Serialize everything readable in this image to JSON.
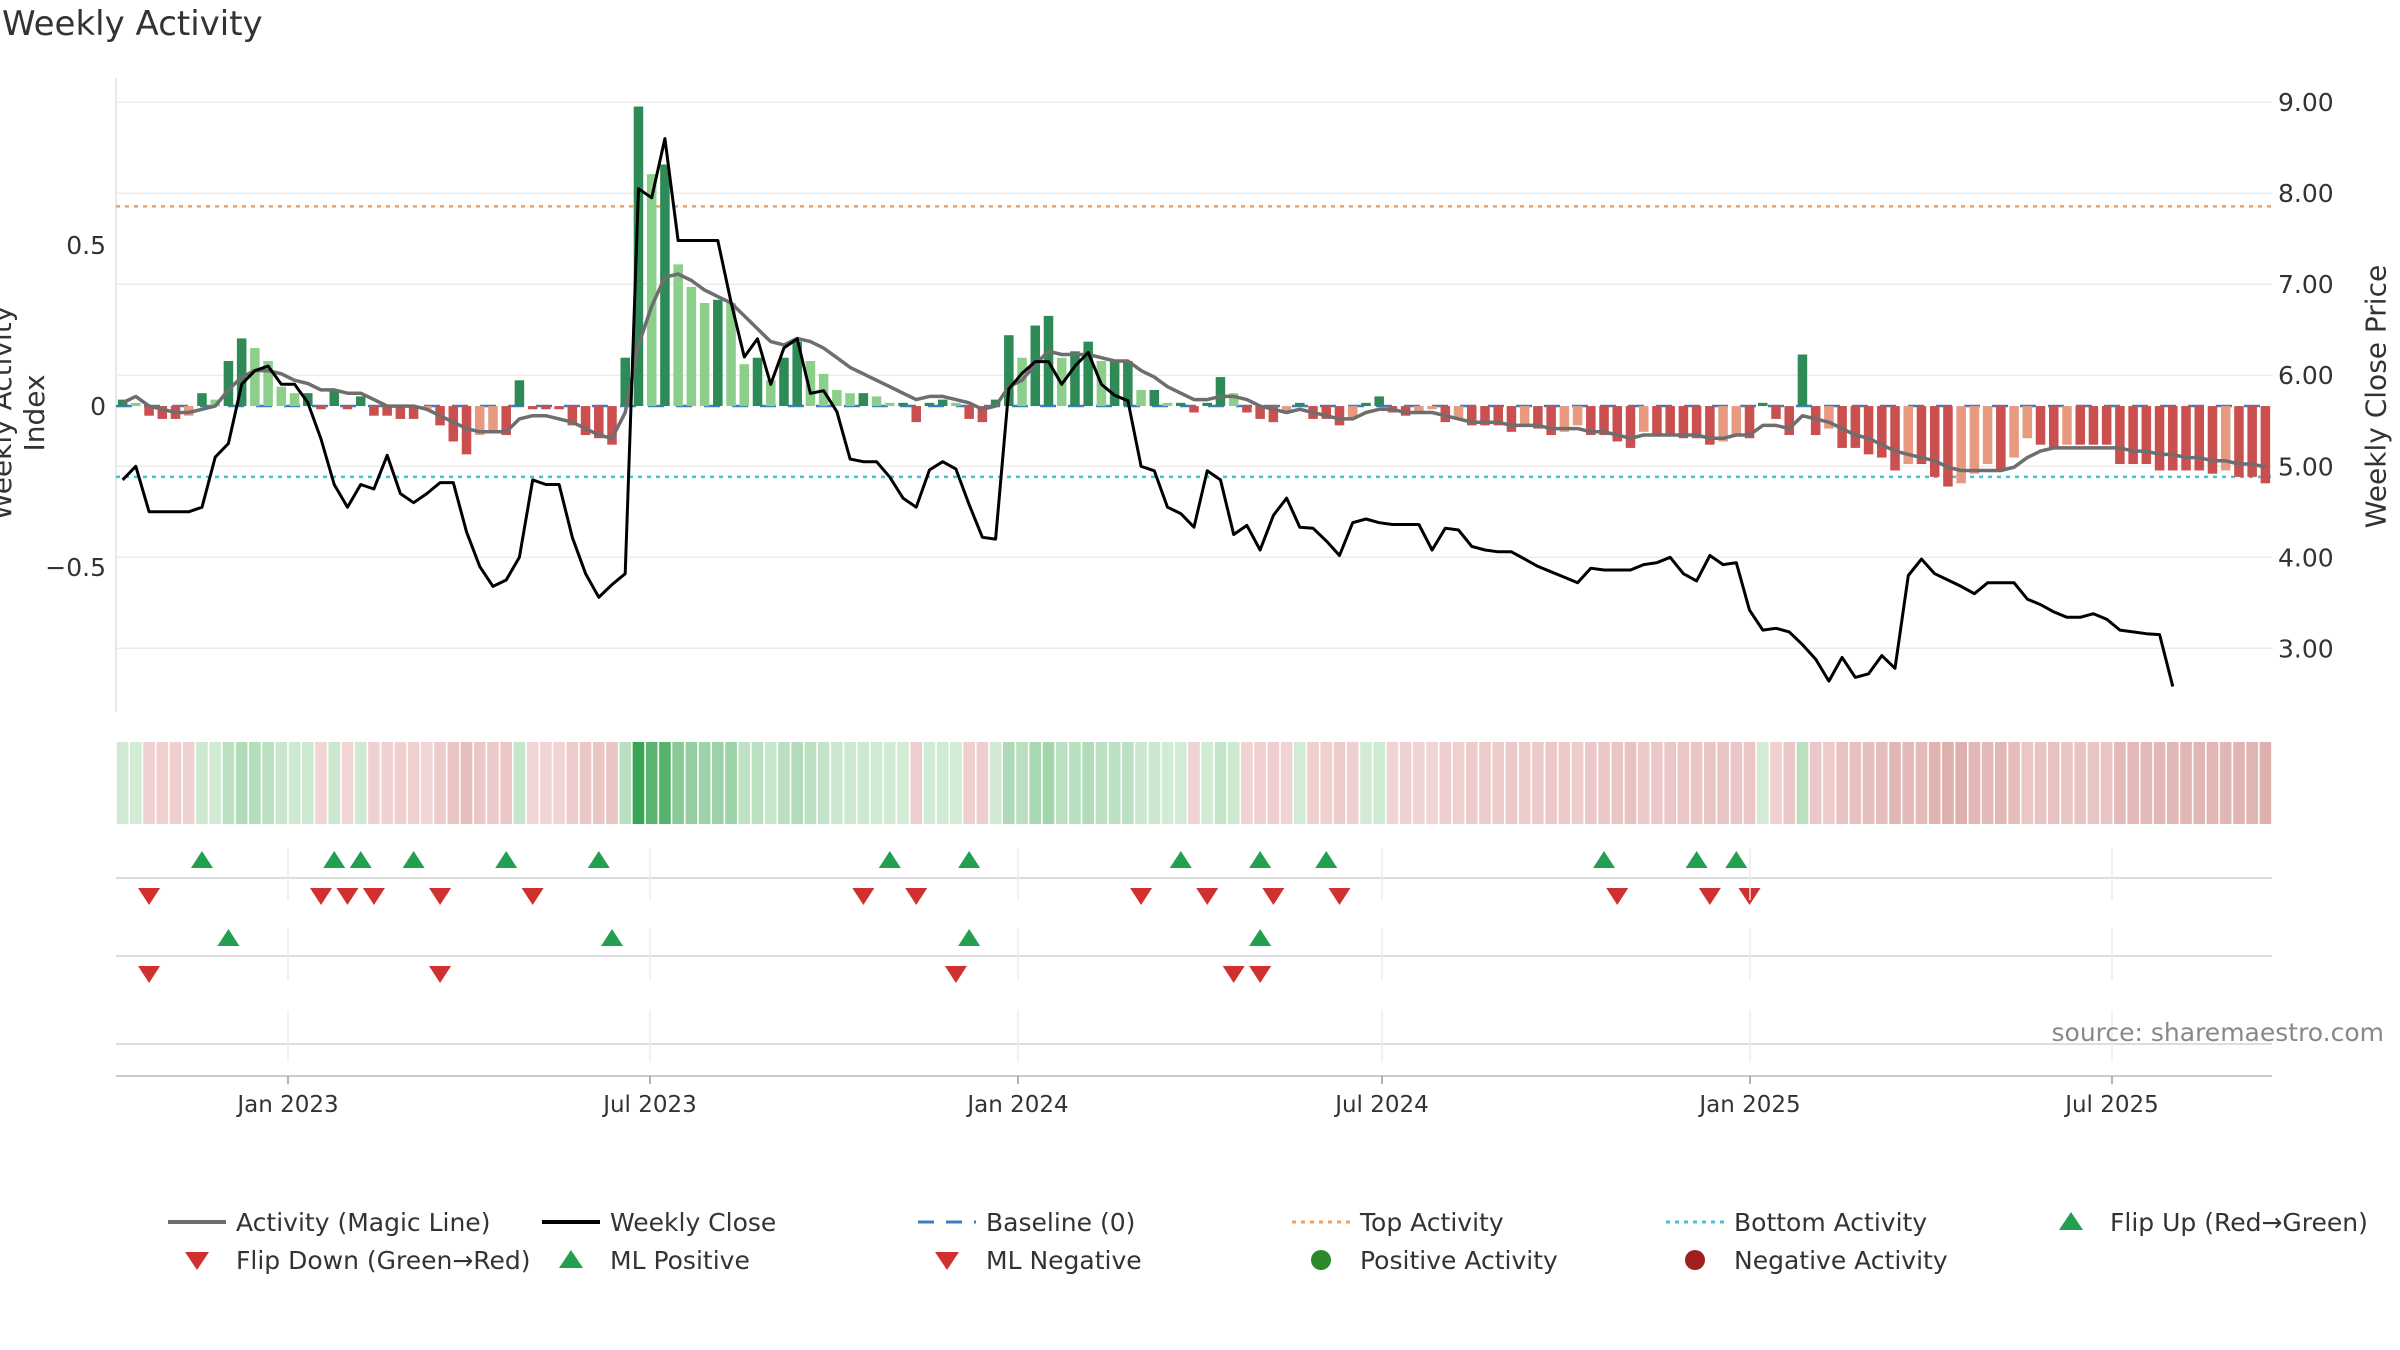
{
  "title": "Weekly Activity",
  "source": "source: sharemaestro.com",
  "colors": {
    "magic_line": "#6e6e6e",
    "close": "#000000",
    "baseline": "#3a7fc0",
    "top": "#f0a060",
    "bottom": "#36c8d8",
    "pos_strong": "#2e8b57",
    "pos_weak": "#8ccf8a",
    "neg_strong": "#c9504f",
    "neg_weak": "#e79a80",
    "flip_up": "#22a050",
    "flip_down": "#d03030",
    "positive_activity": "#2a8a2a",
    "negative_activity": "#a02020"
  },
  "legend": [
    {
      "key": "magic",
      "label": "Activity (Magic Line)"
    },
    {
      "key": "close",
      "label": "Weekly Close"
    },
    {
      "key": "baseline",
      "label": "Baseline (0)"
    },
    {
      "key": "top",
      "label": "Top Activity"
    },
    {
      "key": "bottom",
      "label": "Bottom Activity"
    },
    {
      "key": "flipup",
      "label": "Flip Up (Red→Green)"
    },
    {
      "key": "flipdown",
      "label": "Flip Down (Green→Red)"
    },
    {
      "key": "mlpos",
      "label": "ML Positive"
    },
    {
      "key": "mlneg",
      "label": "ML Negative"
    },
    {
      "key": "posact",
      "label": "Positive Activity"
    },
    {
      "key": "negact",
      "label": "Negative Activity"
    }
  ],
  "chart_data": {
    "type": "bar",
    "title": "Weekly Activity",
    "ylabel": "Weekly Activity Index",
    "ylabel_right": "Weekly Close Price",
    "ylim": [
      -0.95,
      1.0
    ],
    "ylim_right": [
      2.3,
      9.2
    ],
    "yticks_left": [
      {
        "v": 0.5,
        "label": "0.5"
      },
      {
        "v": 0,
        "label": "0"
      },
      {
        "v": -0.5,
        "label": "−0.5"
      }
    ],
    "yticks_right": [
      "3.00",
      "4.00",
      "5.00",
      "6.00",
      "7.00",
      "8.00",
      "9.00"
    ],
    "x_start": "2022-10-07",
    "x_end": "2025-09-19",
    "x_ticks": [
      {
        "date": "2023-01-01",
        "label": "Jan 2023"
      },
      {
        "date": "2023-07-01",
        "label": "Jul 2023"
      },
      {
        "date": "2024-01-01",
        "label": "Jan 2024"
      },
      {
        "date": "2024-07-01",
        "label": "Jul 2024"
      },
      {
        "date": "2025-01-01",
        "label": "Jan 2025"
      },
      {
        "date": "2025-07-01",
        "label": "Jul 2025"
      }
    ],
    "top_activity": 0.62,
    "bottom_activity": -0.22,
    "grid": true,
    "legend_position": "bottom",
    "activity": [
      0.02,
      0.01,
      -0.03,
      -0.04,
      -0.04,
      -0.03,
      0.04,
      0.02,
      0.14,
      0.21,
      0.18,
      0.14,
      0.06,
      0.04,
      0.04,
      -0.01,
      0.05,
      -0.01,
      0.03,
      -0.03,
      -0.03,
      -0.04,
      -0.04,
      -0.01,
      -0.06,
      -0.11,
      -0.15,
      -0.09,
      -0.08,
      -0.09,
      0.08,
      -0.01,
      -0.01,
      -0.01,
      -0.06,
      -0.09,
      -0.1,
      -0.12,
      0.15,
      0.93,
      0.72,
      0.75,
      0.44,
      0.37,
      0.32,
      0.33,
      0.32,
      0.13,
      0.15,
      0.08,
      0.15,
      0.2,
      0.14,
      0.1,
      0.05,
      0.04,
      0.04,
      0.03,
      0.01,
      0.01,
      -0.05,
      0.01,
      0.02,
      0.01,
      -0.04,
      -0.05,
      0.02,
      0.22,
      0.15,
      0.25,
      0.28,
      0.15,
      0.17,
      0.2,
      0.14,
      0.14,
      0.14,
      0.05,
      0.05,
      0.01,
      0.01,
      -0.02,
      0.01,
      0.09,
      0.04,
      -0.02,
      -0.04,
      -0.05,
      -0.02,
      0.01,
      -0.04,
      -0.04,
      -0.06,
      -0.04,
      0.01,
      0.03,
      -0.02,
      -0.03,
      -0.02,
      -0.01,
      -0.05,
      -0.04,
      -0.06,
      -0.06,
      -0.06,
      -0.08,
      -0.06,
      -0.07,
      -0.09,
      -0.08,
      -0.06,
      -0.09,
      -0.09,
      -0.11,
      -0.13,
      -0.08,
      -0.09,
      -0.09,
      -0.1,
      -0.1,
      -0.12,
      -0.11,
      -0.09,
      -0.1,
      0.01,
      -0.04,
      -0.09,
      0.16,
      -0.09,
      -0.07,
      -0.13,
      -0.13,
      -0.15,
      -0.16,
      -0.2,
      -0.18,
      -0.18,
      -0.22,
      -0.25,
      -0.24,
      -0.21,
      -0.18,
      -0.2,
      -0.16,
      -0.1,
      -0.12,
      -0.13,
      -0.12,
      -0.12,
      -0.12,
      -0.12,
      -0.18,
      -0.18,
      -0.18,
      -0.2,
      -0.2,
      -0.2,
      -0.2,
      -0.21,
      -0.2,
      -0.22,
      -0.22,
      -0.24
    ],
    "magic_line": [
      0.01,
      0.03,
      0.0,
      -0.01,
      -0.02,
      -0.02,
      -0.01,
      0.0,
      0.05,
      0.09,
      0.11,
      0.11,
      0.1,
      0.08,
      0.07,
      0.05,
      0.05,
      0.04,
      0.04,
      0.02,
      0.0,
      0.0,
      0.0,
      -0.01,
      -0.03,
      -0.05,
      -0.07,
      -0.08,
      -0.08,
      -0.08,
      -0.04,
      -0.03,
      -0.03,
      -0.04,
      -0.05,
      -0.07,
      -0.09,
      -0.1,
      -0.02,
      0.19,
      0.31,
      0.4,
      0.41,
      0.39,
      0.36,
      0.34,
      0.32,
      0.28,
      0.24,
      0.2,
      0.19,
      0.21,
      0.2,
      0.18,
      0.15,
      0.12,
      0.1,
      0.08,
      0.06,
      0.04,
      0.02,
      0.03,
      0.03,
      0.02,
      0.01,
      -0.01,
      0.0,
      0.06,
      0.08,
      0.13,
      0.17,
      0.16,
      0.16,
      0.16,
      0.15,
      0.14,
      0.14,
      0.11,
      0.09,
      0.06,
      0.04,
      0.02,
      0.02,
      0.03,
      0.03,
      0.02,
      0.0,
      -0.01,
      -0.02,
      -0.01,
      -0.02,
      -0.03,
      -0.04,
      -0.04,
      -0.02,
      -0.01,
      -0.01,
      -0.02,
      -0.02,
      -0.02,
      -0.03,
      -0.04,
      -0.05,
      -0.05,
      -0.05,
      -0.06,
      -0.06,
      -0.06,
      -0.07,
      -0.07,
      -0.07,
      -0.08,
      -0.08,
      -0.09,
      -0.1,
      -0.09,
      -0.09,
      -0.09,
      -0.09,
      -0.09,
      -0.1,
      -0.1,
      -0.09,
      -0.09,
      -0.06,
      -0.06,
      -0.07,
      -0.03,
      -0.04,
      -0.05,
      -0.07,
      -0.09,
      -0.1,
      -0.12,
      -0.14,
      -0.15,
      -0.16,
      -0.17,
      -0.19,
      -0.2,
      -0.2,
      -0.2,
      -0.2,
      -0.19,
      -0.16,
      -0.14,
      -0.13,
      -0.13,
      -0.13,
      -0.13,
      -0.13,
      -0.13,
      -0.14,
      -0.14,
      -0.15,
      -0.15,
      -0.16,
      -0.16,
      -0.17,
      -0.17,
      -0.18,
      -0.18,
      -0.19
    ],
    "weekly_close": [
      4.85,
      5.0,
      4.5,
      4.5,
      4.5,
      4.5,
      4.55,
      5.1,
      5.25,
      5.9,
      6.05,
      6.1,
      5.9,
      5.9,
      5.7,
      5.3,
      4.8,
      4.55,
      4.8,
      4.75,
      5.12,
      4.7,
      4.6,
      4.7,
      4.82,
      4.82,
      4.28,
      3.9,
      3.68,
      3.75,
      4.0,
      4.85,
      4.8,
      4.8,
      4.22,
      3.82,
      3.56,
      3.7,
      3.82,
      8.05,
      7.95,
      8.6,
      7.48,
      7.48,
      7.48,
      7.48,
      6.8,
      6.2,
      6.4,
      5.9,
      6.3,
      6.4,
      5.8,
      5.83,
      5.6,
      5.08,
      5.05,
      5.05,
      4.88,
      4.65,
      4.55,
      4.96,
      5.05,
      4.97,
      4.58,
      4.22,
      4.2,
      5.85,
      6.02,
      6.15,
      6.15,
      5.9,
      6.1,
      6.25,
      5.9,
      5.78,
      5.72,
      5.0,
      4.95,
      4.55,
      4.48,
      4.33,
      4.95,
      4.85,
      4.25,
      4.35,
      4.08,
      4.46,
      4.65,
      4.33,
      4.32,
      4.18,
      4.02,
      4.38,
      4.42,
      4.38,
      4.36,
      4.36,
      4.36,
      4.08,
      4.32,
      4.3,
      4.12,
      4.08,
      4.06,
      4.06,
      3.98,
      3.9,
      3.84,
      3.78,
      3.72,
      3.88,
      3.86,
      3.86,
      3.86,
      3.92,
      3.94,
      4.0,
      3.82,
      3.74,
      4.02,
      3.92,
      3.94,
      3.42,
      3.2,
      3.22,
      3.18,
      3.04,
      2.88,
      2.64,
      2.9,
      2.68,
      2.72,
      2.92,
      2.78,
      3.8,
      3.98,
      3.82,
      3.75,
      3.68,
      3.6,
      3.72,
      3.72,
      3.72,
      3.54,
      3.48,
      3.4,
      3.34,
      3.34,
      3.38,
      3.32,
      3.2,
      3.18,
      3.16,
      3.15,
      2.58
    ],
    "flip_rows": [
      {
        "up": [
          6,
          16,
          18,
          22,
          29,
          36,
          58,
          64,
          80,
          86,
          91,
          112,
          119,
          122
        ],
        "down": [
          2,
          15,
          17,
          19,
          24,
          31,
          56,
          60,
          77,
          82,
          87,
          92,
          113,
          120,
          123
        ]
      },
      {
        "up": [
          8,
          37,
          64,
          86
        ],
        "down": [
          2,
          24,
          63,
          84,
          86
        ]
      },
      {
        "up": [],
        "down": []
      }
    ]
  }
}
